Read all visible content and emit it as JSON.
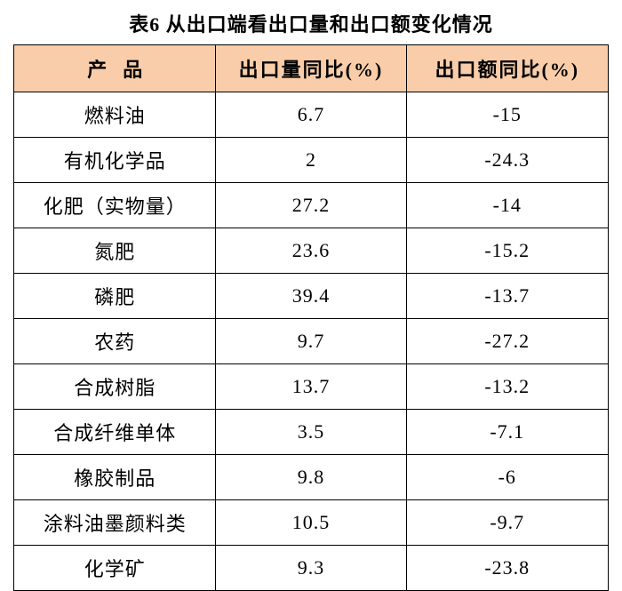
{
  "title": "表6 从出口端看出口量和出口额变化情况",
  "columns": {
    "product": "产品",
    "volume": "出口量同比(%)",
    "value": "出口额同比(%)"
  },
  "rows": [
    {
      "product": "燃料油",
      "volume": "6.7",
      "value": "-15"
    },
    {
      "product": "有机化学品",
      "volume": "2",
      "value": "-24.3"
    },
    {
      "product": "化肥（实物量）",
      "volume": "27.2",
      "value": "-14"
    },
    {
      "product": "氮肥",
      "volume": "23.6",
      "value": "-15.2"
    },
    {
      "product": "磷肥",
      "volume": "39.4",
      "value": "-13.7"
    },
    {
      "product": "农药",
      "volume": "9.7",
      "value": "-27.2"
    },
    {
      "product": "合成树脂",
      "volume": "13.7",
      "value": "-13.2"
    },
    {
      "product": "合成纤维单体",
      "volume": "3.5",
      "value": "-7.1"
    },
    {
      "product": "橡胶制品",
      "volume": "9.8",
      "value": "-6"
    },
    {
      "product": "涂料油墨颜料类",
      "volume": "10.5",
      "value": "-9.7"
    },
    {
      "product": "化学矿",
      "volume": "9.3",
      "value": "-23.8"
    }
  ],
  "style": {
    "header_bg": "#f9cda9",
    "border_color": "#000000",
    "background_color": "#ffffff",
    "font_family": "SimSun",
    "title_fontsize": 22,
    "cell_fontsize": 22
  }
}
